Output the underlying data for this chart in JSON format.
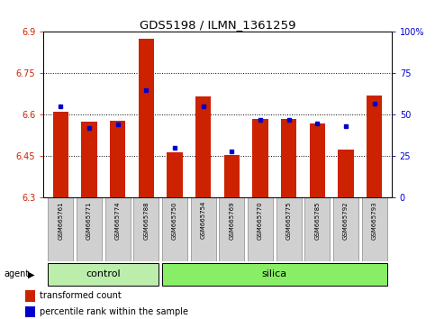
{
  "title": "GDS5198 / ILMN_1361259",
  "samples": [
    "GSM665761",
    "GSM665771",
    "GSM665774",
    "GSM665788",
    "GSM665750",
    "GSM665754",
    "GSM665769",
    "GSM665770",
    "GSM665775",
    "GSM665785",
    "GSM665792",
    "GSM665793"
  ],
  "groups": [
    "control",
    "control",
    "control",
    "control",
    "silica",
    "silica",
    "silica",
    "silica",
    "silica",
    "silica",
    "silica",
    "silica"
  ],
  "transformed_counts": [
    6.61,
    6.575,
    6.58,
    6.875,
    6.465,
    6.665,
    6.455,
    6.585,
    6.585,
    6.57,
    6.475,
    6.67
  ],
  "percentile_ranks": [
    55,
    42,
    44,
    65,
    30,
    55,
    28,
    47,
    47,
    45,
    43,
    57
  ],
  "ylim_left": [
    6.3,
    6.9
  ],
  "ylim_right": [
    0,
    100
  ],
  "yticks_left": [
    6.3,
    6.45,
    6.6,
    6.75,
    6.9
  ],
  "yticks_right": [
    0,
    25,
    50,
    75,
    100
  ],
  "ytick_labels_left": [
    "6.3",
    "6.45",
    "6.6",
    "6.75",
    "6.9"
  ],
  "ytick_labels_right": [
    "0",
    "25",
    "50",
    "75",
    "100%"
  ],
  "bar_color": "#cc2200",
  "dot_color": "#0000cc",
  "grid_color": "#000000",
  "bg_color": "#ffffff",
  "control_bg": "#bbeeaa",
  "silica_bg": "#88ee66",
  "agent_label": "agent",
  "legend_items": [
    "transformed count",
    "percentile rank within the sample"
  ],
  "bar_width": 0.55,
  "bar_bottom": 6.3
}
